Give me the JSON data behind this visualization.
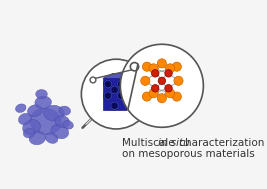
{
  "bg_color": "#f0f0f0",
  "particle_color": "#6060c0",
  "particle_shadow": "#4040a0",
  "cylinder_color": "#2020a0",
  "cylinder_dark": "#1a1a80",
  "hole_color": "#4444bb",
  "atom_orange": "#ff8800",
  "atom_red": "#cc2200",
  "bond_color": "#888888",
  "circle_bg": "#ffffff",
  "circle_border": "#555555",
  "text_line1": "Multiscale ",
  "text_italic": "in situ",
  "text_line1b": " characterization",
  "text_line2": "on mesoporous materials",
  "text_color": "#333333",
  "text_size": 7.5,
  "fig_width": 2.67,
  "fig_height": 1.89
}
